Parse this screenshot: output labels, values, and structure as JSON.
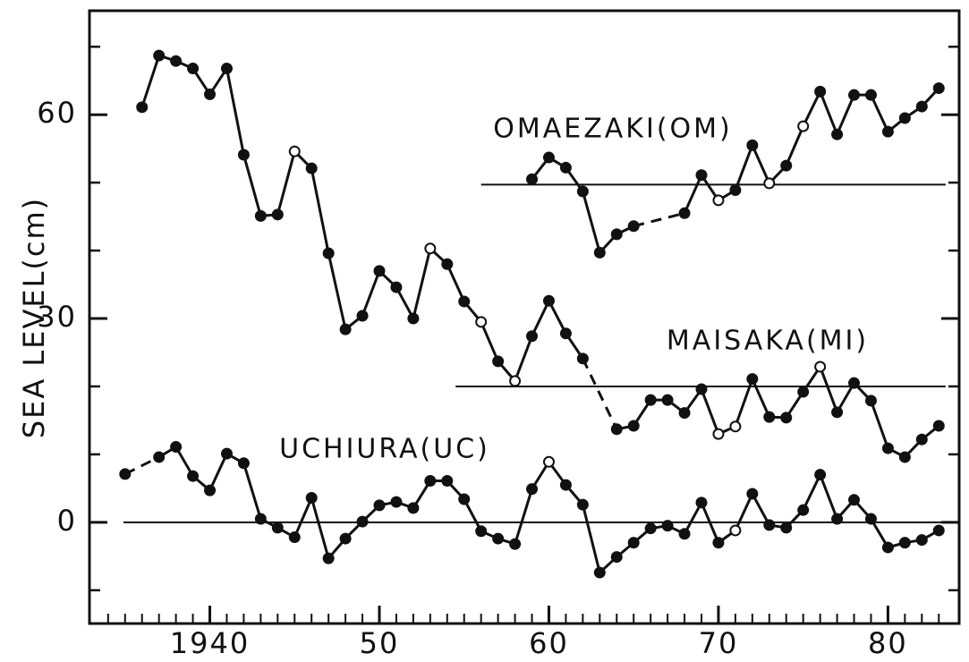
{
  "chart_data": {
    "type": "line",
    "ylabel": "SEA LEVEL(cm)",
    "x": [
      1935,
      1936,
      1937,
      1938,
      1939,
      1940,
      1941,
      1942,
      1943,
      1944,
      1945,
      1946,
      1947,
      1948,
      1949,
      1950,
      1951,
      1952,
      1953,
      1954,
      1955,
      1956,
      1957,
      1958,
      1959,
      1960,
      1961,
      1962,
      1963,
      1964,
      1965,
      1966,
      1967,
      1968,
      1969,
      1970,
      1971,
      1972,
      1973,
      1974,
      1975,
      1976,
      1977,
      1978,
      1979,
      1980,
      1981,
      1982,
      1983
    ],
    "series": [
      {
        "name": "OMAEZAKI(OM)",
        "color": "#111111",
        "values": [
          null,
          null,
          null,
          null,
          null,
          null,
          null,
          null,
          null,
          null,
          null,
          null,
          null,
          null,
          null,
          null,
          null,
          null,
          null,
          null,
          null,
          null,
          null,
          null,
          50.5,
          53.7,
          52.2,
          48.7,
          39.7,
          42.4,
          43.6,
          null,
          null,
          45.5,
          51.1,
          47.4,
          48.9,
          55.5,
          49.9,
          52.5,
          58.3,
          63.4,
          57.1,
          62.9,
          62.9,
          57.5,
          59.5,
          61.2,
          63.9
        ],
        "open_points": [
          35,
          38,
          40
        ],
        "reference": {
          "value": 49.7,
          "xlim": [
            1956.0,
            1983.4
          ]
        }
      },
      {
        "name": "MAISAKA(MI)",
        "color": "#111111",
        "values": [
          null,
          61.1,
          68.7,
          67.9,
          66.8,
          63.0,
          66.8,
          54.1,
          45.1,
          45.3,
          54.6,
          52.1,
          39.6,
          28.4,
          30.4,
          37.0,
          34.6,
          30.0,
          40.3,
          38.0,
          32.5,
          29.5,
          23.7,
          20.8,
          27.4,
          32.6,
          27.8,
          24.1,
          null,
          13.7,
          14.2,
          18.0,
          18.0,
          16.1,
          19.6,
          13.0,
          14.1,
          21.1,
          15.5,
          15.4,
          19.2,
          22.9,
          16.2,
          20.5,
          17.9,
          10.9,
          9.6,
          12.2,
          14.2
        ],
        "open_points": [
          10,
          18,
          21,
          23,
          35,
          36,
          41
        ],
        "reference": {
          "value": 20.0,
          "xlim": [
            1954.5,
            1983.4
          ]
        }
      },
      {
        "name": "UCHIURA(UC)",
        "color": "#111111",
        "values": [
          7.1,
          null,
          9.6,
          11.1,
          6.8,
          4.7,
          10.1,
          8.7,
          0.5,
          -0.8,
          -2.2,
          3.6,
          -5.3,
          -2.4,
          0.1,
          2.5,
          3.0,
          2.1,
          6.1,
          6.1,
          3.4,
          -1.3,
          -2.4,
          -3.2,
          4.9,
          8.9,
          5.5,
          2.6,
          -7.4,
          -5.1,
          -3.0,
          -0.9,
          -0.5,
          -1.7,
          2.9,
          -3.0,
          -1.2,
          4.2,
          -0.4,
          -0.8,
          1.8,
          7.0,
          0.5,
          3.3,
          0.5,
          -3.7,
          -3.0,
          -2.6,
          -1.2
        ],
        "open_points": [
          25,
          36
        ],
        "reference": {
          "value": 0,
          "xlim": [
            1934.9,
            1983.4
          ]
        }
      }
    ],
    "xlim": [
      1932.9,
      1984.2
    ],
    "xticks": [
      1940,
      {
        "value": 1950,
        "label": "50"
      },
      {
        "value": 1960,
        "label": "60"
      },
      {
        "value": 1970,
        "label": "70"
      },
      {
        "value": 1980,
        "label": "80"
      }
    ],
    "xminorticks": [
      1934,
      1935,
      1936,
      1937,
      1938,
      1939,
      1941,
      1942,
      1943,
      1944,
      1945,
      1946,
      1947,
      1948,
      1949,
      1951,
      1952,
      1953,
      1954,
      1955,
      1956,
      1957,
      1958,
      1959,
      1961,
      1962,
      1963,
      1964,
      1965,
      1966,
      1967,
      1968,
      1969,
      1971,
      1972,
      1973,
      1974,
      1975,
      1976,
      1977,
      1978,
      1979,
      1981,
      1982,
      1983
    ],
    "ylim": [
      -14.9,
      75.3
    ],
    "yticks": [
      0,
      30,
      60
    ],
    "yminorticks": [
      -10,
      10,
      20,
      40,
      50,
      70
    ]
  }
}
